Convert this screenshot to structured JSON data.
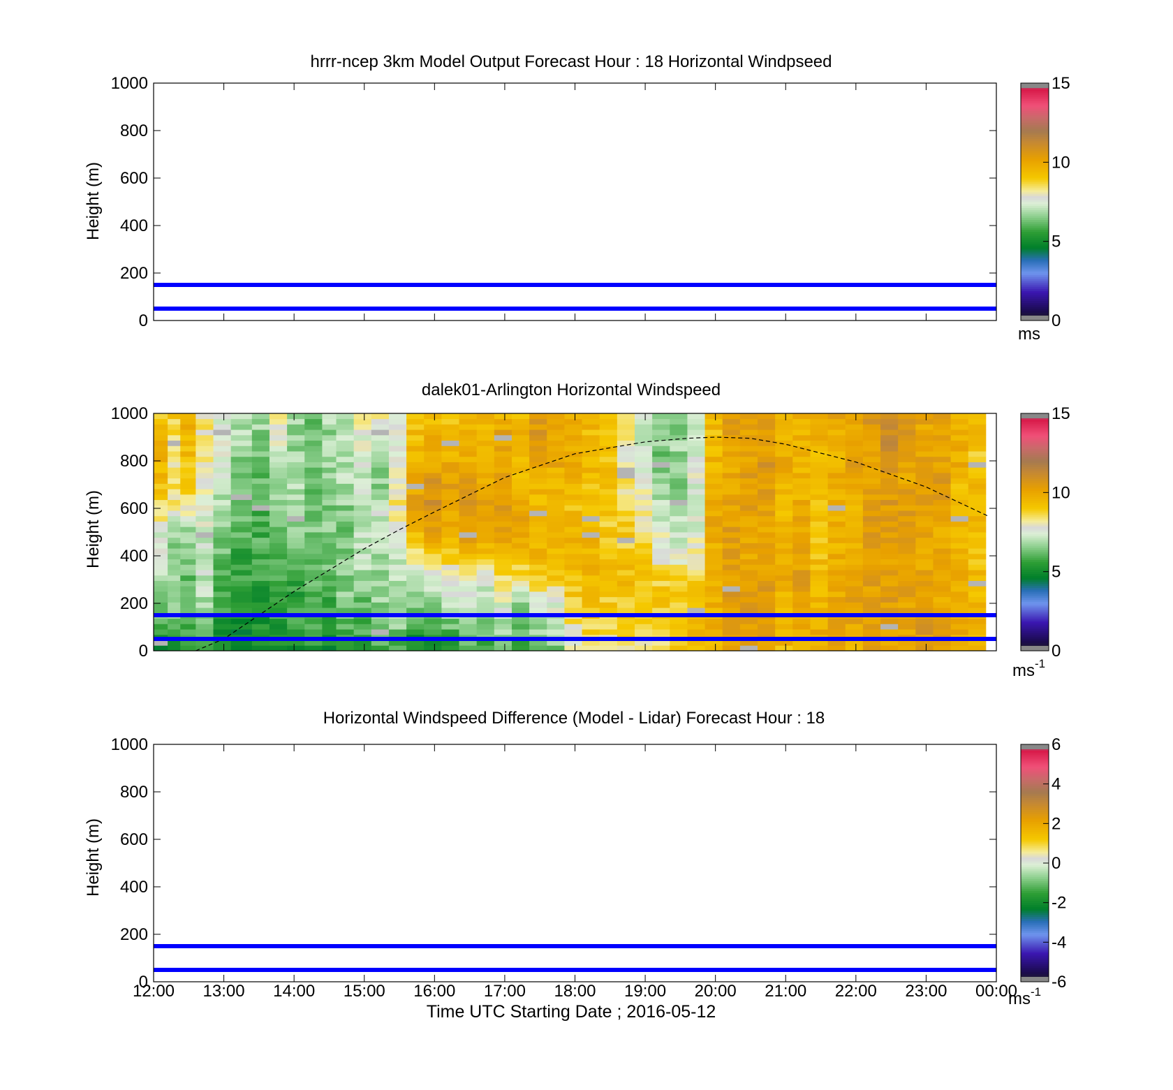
{
  "figure": {
    "x_tick_labels": [
      "12:00",
      "13:00",
      "14:00",
      "15:00",
      "16:00",
      "17:00",
      "18:00",
      "19:00",
      "20:00",
      "21:00",
      "22:00",
      "23:00",
      "00:00"
    ],
    "x_label": "Time UTC  Starting Date ; 2016-05-12"
  },
  "chart_data": [
    {
      "type": "heatmap",
      "title": "hrrr-ncep 3km Model Output   Forecast Hour : 18 Horizontal Windpseed",
      "ylabel": "Height (m)",
      "x_range_hours": [
        12,
        24
      ],
      "ylim": [
        0,
        1000
      ],
      "y_ticks": [
        0,
        200,
        400,
        600,
        800,
        1000
      ],
      "field": "empty",
      "reference_lines_m": [
        150,
        50
      ],
      "reference_line_color": "#0000ff",
      "colorbar": {
        "range": [
          0,
          15
        ],
        "ticks": [
          0,
          5,
          10,
          15
        ],
        "unit": "ms",
        "unit_superscript": "",
        "stops": [
          {
            "v": 0.0,
            "c": "#222222"
          },
          {
            "v": 0.6,
            "c": "#1b0b4e"
          },
          {
            "v": 1.8,
            "c": "#3a16b0"
          },
          {
            "v": 3.0,
            "c": "#6f95ee"
          },
          {
            "v": 3.8,
            "c": "#2a6fb8"
          },
          {
            "v": 4.6,
            "c": "#007f2a"
          },
          {
            "v": 5.6,
            "c": "#2e9e35"
          },
          {
            "v": 6.6,
            "c": "#8fd08f"
          },
          {
            "v": 7.4,
            "c": "#dcefd6"
          },
          {
            "v": 7.8,
            "c": "#d8d8d8"
          },
          {
            "v": 8.2,
            "c": "#f5ec9a"
          },
          {
            "v": 9.0,
            "c": "#f5c800"
          },
          {
            "v": 10.2,
            "c": "#e8a000"
          },
          {
            "v": 11.2,
            "c": "#c88a30"
          },
          {
            "v": 12.0,
            "c": "#a57a50"
          },
          {
            "v": 12.8,
            "c": "#c86a6a"
          },
          {
            "v": 13.6,
            "c": "#f05078"
          },
          {
            "v": 14.6,
            "c": "#d81a4a"
          },
          {
            "v": 15.0,
            "c": "#888888"
          }
        ]
      }
    },
    {
      "type": "heatmap",
      "title": "dalek01-Arlington  Horizontal Windspeed",
      "ylabel": "Height (m)",
      "x_range_hours": [
        12,
        24
      ],
      "ylim": [
        0,
        1000
      ],
      "y_ticks": [
        0,
        200,
        400,
        600,
        800,
        1000
      ],
      "field": "lidar",
      "reference_lines_m": [
        150,
        50
      ],
      "reference_line_color": "#0000ff",
      "boundary_layer_curve": {
        "x_hours": [
          12.6,
          13.0,
          14.0,
          15.0,
          15.5,
          16.0,
          17.0,
          18.0,
          19.0,
          19.6,
          20.0,
          20.5,
          21.0,
          22.0,
          23.0,
          23.9
        ],
        "y_m": [
          0,
          50,
          250,
          430,
          510,
          585,
          730,
          830,
          880,
          895,
          900,
          895,
          870,
          795,
          690,
          565
        ]
      },
      "columns": {
        "x_start_hours": [
          12.0,
          12.2,
          12.38,
          12.6,
          12.85,
          13.1,
          13.4,
          13.65,
          13.9,
          14.15,
          14.4,
          14.6,
          14.85,
          15.1,
          15.35,
          15.6,
          15.85,
          16.1,
          16.35,
          16.6,
          16.85,
          17.1,
          17.35,
          17.6,
          17.85,
          18.1,
          18.35,
          18.6,
          18.85,
          19.1,
          19.35,
          19.6,
          19.85,
          20.1,
          20.35,
          20.6,
          20.85,
          21.1,
          21.35,
          21.6,
          21.85,
          22.1,
          22.35,
          22.6,
          22.85,
          23.1,
          23.35,
          23.6
        ],
        "x_end_hours": [
          12.2,
          12.38,
          12.6,
          12.85,
          13.1,
          13.4,
          13.65,
          13.9,
          14.15,
          14.4,
          14.6,
          14.85,
          15.1,
          15.35,
          15.6,
          15.85,
          16.1,
          16.35,
          16.6,
          16.85,
          17.1,
          17.35,
          17.6,
          17.85,
          18.1,
          18.35,
          18.6,
          18.85,
          19.1,
          19.35,
          19.6,
          19.85,
          20.1,
          20.35,
          20.6,
          20.85,
          21.1,
          21.35,
          21.6,
          21.85,
          22.1,
          22.35,
          22.6,
          22.85,
          23.1,
          23.35,
          23.6,
          23.85
        ]
      },
      "height_levels_m": [
        0,
        100,
        200,
        300,
        400,
        500,
        600,
        700,
        800,
        900,
        1000
      ],
      "windspeed_ms": [
        [
          5.0,
          6.0,
          6.5,
          7.0,
          7.5,
          7.5,
          8.6,
          9.4,
          9.6,
          9.4,
          9.0
        ],
        [
          5.0,
          6.2,
          6.6,
          6.8,
          6.6,
          6.8,
          8.2,
          8.8,
          8.4,
          8.6,
          9.0
        ],
        [
          5.2,
          6.0,
          6.2,
          6.3,
          6.4,
          6.6,
          8.2,
          9.0,
          9.2,
          9.6,
          9.8
        ],
        [
          5.4,
          6.4,
          6.8,
          7.2,
          7.2,
          7.4,
          7.6,
          7.9,
          8.3,
          8.0,
          8.4
        ],
        [
          4.8,
          5.4,
          5.6,
          5.8,
          6.2,
          6.6,
          6.8,
          7.2,
          7.6,
          7.9,
          7.5
        ],
        [
          4.6,
          5.0,
          5.2,
          5.6,
          5.6,
          6.0,
          6.2,
          6.3,
          6.6,
          6.8,
          7.0
        ],
        [
          4.8,
          5.2,
          5.3,
          5.6,
          5.8,
          5.9,
          6.0,
          6.2,
          6.4,
          6.6,
          6.8
        ],
        [
          5.0,
          5.4,
          5.8,
          5.8,
          6.1,
          6.2,
          6.6,
          7.0,
          7.4,
          7.7,
          8.3
        ],
        [
          5.0,
          5.6,
          5.6,
          5.7,
          6.2,
          6.4,
          6.8,
          6.9,
          6.9,
          6.6,
          6.9
        ],
        [
          5.2,
          5.8,
          6.1,
          6.2,
          6.3,
          6.4,
          6.2,
          6.3,
          6.6,
          6.3,
          6.1
        ],
        [
          5.0,
          5.6,
          5.8,
          6.2,
          6.4,
          6.5,
          6.3,
          6.5,
          6.8,
          6.7,
          6.9
        ],
        [
          5.2,
          5.9,
          6.5,
          6.6,
          6.5,
          6.4,
          6.6,
          6.9,
          7.0,
          7.4,
          7.0
        ],
        [
          5.4,
          5.8,
          6.2,
          6.8,
          7.0,
          7.1,
          7.0,
          7.2,
          7.4,
          7.6,
          8.0
        ],
        [
          5.6,
          6.4,
          6.6,
          6.8,
          6.9,
          7.2,
          7.3,
          6.6,
          6.8,
          7.1,
          8.6
        ],
        [
          5.8,
          6.6,
          6.8,
          7.0,
          7.2,
          7.6,
          8.3,
          8.0,
          7.6,
          7.2,
          8.1
        ],
        [
          4.8,
          5.6,
          6.6,
          7.0,
          8.6,
          9.4,
          10.4,
          10.0,
          9.6,
          9.4,
          9.0
        ],
        [
          5.0,
          5.8,
          6.7,
          7.2,
          8.8,
          10.2,
          10.9,
          10.6,
          10.0,
          9.6,
          9.4
        ],
        [
          5.4,
          6.2,
          7.1,
          7.6,
          9.0,
          9.6,
          10.2,
          10.4,
          9.8,
          9.4,
          9.0
        ],
        [
          5.6,
          6.6,
          7.6,
          7.8,
          9.4,
          10.4,
          10.8,
          10.6,
          9.6,
          9.6,
          9.5
        ],
        [
          5.6,
          6.4,
          6.8,
          7.4,
          9.2,
          10.0,
          10.4,
          10.1,
          9.8,
          9.7,
          9.4
        ],
        [
          6.0,
          6.8,
          7.6,
          8.3,
          9.4,
          10.2,
          10.6,
          10.2,
          10.1,
          10.2,
          9.6
        ],
        [
          5.8,
          6.2,
          6.6,
          8.4,
          9.2,
          9.8,
          10.1,
          9.6,
          9.4,
          9.6,
          9.4
        ],
        [
          6.2,
          6.8,
          7.7,
          8.8,
          9.4,
          9.8,
          9.4,
          9.6,
          10.2,
          10.6,
          10.4
        ],
        [
          6.4,
          7.0,
          7.6,
          9.0,
          9.6,
          9.4,
          9.2,
          9.5,
          10.0,
          10.2,
          9.9
        ],
        [
          7.6,
          8.2,
          8.8,
          9.2,
          9.4,
          9.6,
          9.2,
          9.4,
          9.8,
          10.1,
          9.6
        ],
        [
          8.2,
          8.8,
          9.2,
          9.6,
          9.6,
          9.4,
          9.2,
          9.3,
          9.6,
          9.4,
          9.5
        ],
        [
          8.0,
          8.6,
          9.0,
          9.3,
          9.2,
          9.0,
          9.1,
          9.3,
          9.0,
          9.2,
          9.4
        ],
        [
          8.4,
          8.8,
          9.1,
          9.4,
          9.0,
          9.0,
          8.8,
          8.4,
          8.0,
          8.2,
          8.3
        ],
        [
          8.4,
          8.7,
          8.9,
          9.0,
          8.9,
          8.6,
          8.0,
          7.6,
          7.2,
          7.3,
          7.6
        ],
        [
          8.6,
          8.8,
          9.0,
          8.8,
          8.2,
          7.6,
          7.1,
          6.6,
          6.4,
          6.6,
          6.8
        ],
        [
          9.0,
          9.0,
          9.1,
          8.6,
          7.8,
          7.2,
          6.7,
          6.5,
          6.6,
          6.8,
          6.4
        ],
        [
          9.2,
          9.4,
          9.2,
          8.6,
          8.0,
          7.6,
          7.3,
          7.4,
          7.7,
          7.4,
          7.5
        ],
        [
          9.6,
          9.8,
          9.6,
          9.6,
          9.8,
          10.0,
          9.8,
          9.6,
          9.6,
          9.4,
          9.2
        ],
        [
          10.0,
          10.2,
          10.4,
          10.4,
          10.2,
          10.3,
          10.2,
          10.0,
          10.0,
          10.2,
          10.4
        ],
        [
          10.2,
          10.2,
          10.4,
          10.1,
          9.9,
          10.0,
          10.2,
          10.4,
          10.2,
          10.4,
          10.2
        ],
        [
          10.4,
          10.6,
          10.8,
          10.2,
          10.0,
          10.1,
          10.2,
          10.4,
          10.6,
          10.2,
          10.4
        ],
        [
          9.4,
          9.6,
          9.5,
          9.8,
          9.9,
          9.6,
          9.4,
          9.6,
          9.8,
          9.8,
          10.0
        ],
        [
          9.8,
          10.0,
          10.2,
          10.4,
          10.1,
          10.0,
          9.8,
          9.6,
          9.4,
          9.6,
          9.8
        ],
        [
          9.6,
          9.8,
          9.6,
          9.5,
          9.3,
          9.2,
          9.4,
          9.2,
          9.5,
          9.6,
          9.8
        ],
        [
          10.0,
          10.2,
          10.0,
          9.8,
          9.7,
          9.6,
          9.7,
          9.8,
          9.6,
          9.8,
          10.0
        ],
        [
          9.8,
          10.0,
          10.2,
          10.0,
          9.8,
          9.6,
          9.7,
          10.0,
          10.2,
          10.0,
          9.6
        ],
        [
          10.2,
          10.3,
          10.1,
          10.3,
          10.2,
          10.4,
          10.3,
          10.2,
          10.2,
          10.4,
          10.6
        ],
        [
          9.8,
          10.1,
          10.4,
          10.2,
          10.0,
          10.2,
          10.4,
          10.6,
          10.8,
          11.2,
          11.2
        ],
        [
          9.9,
          10.0,
          10.2,
          10.1,
          10.0,
          10.2,
          10.4,
          10.2,
          10.2,
          10.4,
          10.6
        ],
        [
          10.4,
          10.5,
          10.3,
          10.0,
          10.1,
          10.2,
          10.4,
          10.6,
          10.2,
          10.0,
          10.2
        ],
        [
          10.0,
          10.2,
          10.0,
          9.8,
          9.8,
          10.0,
          10.2,
          10.4,
          10.2,
          10.0,
          10.4
        ],
        [
          9.6,
          9.8,
          10.0,
          9.8,
          9.6,
          9.7,
          9.6,
          9.4,
          9.8,
          9.6,
          9.4
        ],
        [
          9.4,
          9.6,
          9.5,
          9.4,
          9.3,
          9.4,
          9.2,
          9.4,
          9.0,
          9.2,
          9.4
        ]
      ],
      "colorbar": {
        "range": [
          0,
          15
        ],
        "ticks": [
          0,
          5,
          10,
          15
        ],
        "unit": "ms",
        "unit_superscript": "-1",
        "stops": "same-as-panel-1"
      }
    },
    {
      "type": "heatmap",
      "title": "Horizontal Windspeed Difference (Model - Lidar) Forecast Hour : 18",
      "ylabel": "Height (m)",
      "x_range_hours": [
        12,
        24
      ],
      "ylim": [
        0,
        1000
      ],
      "y_ticks": [
        0,
        200,
        400,
        600,
        800,
        1000
      ],
      "field": "empty",
      "reference_lines_m": [
        150,
        50
      ],
      "reference_line_color": "#0000ff",
      "colorbar": {
        "range": [
          -6,
          6
        ],
        "ticks": [
          -6,
          -4,
          -2,
          0,
          2,
          4,
          6
        ],
        "unit": "ms",
        "unit_superscript": "-1",
        "stops": "same-as-panel-1-rescaled"
      }
    }
  ]
}
